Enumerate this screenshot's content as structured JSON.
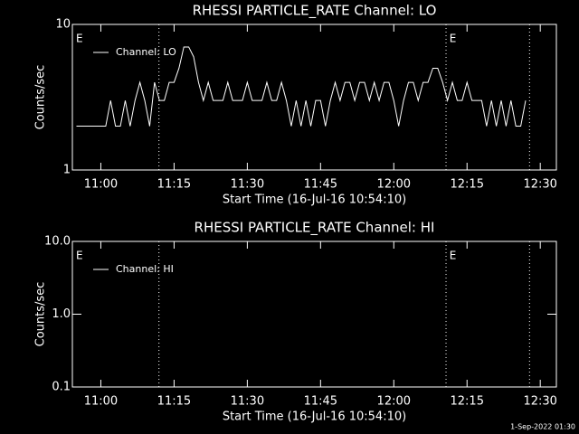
{
  "chart_data": [
    {
      "type": "line",
      "title": "RHESSI PARTICLE_RATE Channel: LO",
      "xlabel": "Start Time (16-Jul-16 10:54:10)",
      "ylabel": "Counts/sec",
      "ylog": true,
      "ylim": [
        1,
        10
      ],
      "yticks": [
        1,
        10
      ],
      "xlim": [
        654.17,
        753.3
      ],
      "xticks": [
        {
          "value": 660,
          "label": "11:00"
        },
        {
          "value": 675,
          "label": "11:15"
        },
        {
          "value": 690,
          "label": "11:30"
        },
        {
          "value": 705,
          "label": "11:45"
        },
        {
          "value": 720,
          "label": "12:00"
        },
        {
          "value": 735,
          "label": "12:15"
        },
        {
          "value": 750,
          "label": "12:30"
        }
      ],
      "vlines": [
        671.9,
        730.7,
        747.8
      ],
      "annotations": [
        {
          "text": "E",
          "x": 654.9
        },
        {
          "text": "E",
          "x": 731.4
        }
      ],
      "legend": "upper left",
      "series": [
        {
          "name": "Channel: LO",
          "color": "#ffffff",
          "x": [
            655,
            656,
            657,
            658,
            659,
            660,
            661,
            662,
            663,
            664,
            665,
            666,
            667,
            668,
            669,
            670,
            671,
            672,
            673,
            674,
            675,
            676,
            677,
            678,
            679,
            680,
            681,
            682,
            683,
            684,
            685,
            686,
            687,
            688,
            689,
            690,
            691,
            692,
            693,
            694,
            695,
            696,
            697,
            698,
            699,
            700,
            701,
            702,
            703,
            704,
            705,
            706,
            707,
            708,
            709,
            710,
            711,
            712,
            713,
            714,
            715,
            716,
            717,
            718,
            719,
            720,
            721,
            722,
            723,
            724,
            725,
            726,
            727,
            728,
            729,
            730,
            731,
            732,
            733,
            734,
            735,
            736,
            737,
            738,
            739,
            740,
            741,
            742,
            743,
            744,
            745,
            746,
            747
          ],
          "values": [
            2,
            2,
            2,
            2,
            2,
            2,
            2,
            3,
            2,
            2,
            3,
            2,
            3,
            4,
            3,
            2,
            4,
            3,
            3,
            4,
            4,
            5,
            7,
            7,
            6,
            4,
            3,
            4,
            3,
            3,
            3,
            4,
            3,
            3,
            3,
            4,
            3,
            3,
            3,
            4,
            3,
            3,
            4,
            3,
            2,
            3,
            2,
            3,
            2,
            3,
            3,
            2,
            3,
            4,
            3,
            4,
            4,
            3,
            4,
            4,
            3,
            4,
            3,
            4,
            4,
            3,
            2,
            3,
            4,
            4,
            3,
            4,
            4,
            5,
            5,
            4,
            3,
            4,
            3,
            3,
            4,
            3,
            3,
            3,
            2,
            3,
            2,
            3,
            2,
            3,
            2,
            2,
            3
          ]
        }
      ]
    },
    {
      "type": "line",
      "title": "RHESSI PARTICLE_RATE Channel: HI",
      "xlabel": "Start Time (16-Jul-16 10:54:10)",
      "ylabel": "Counts/sec",
      "ylog": true,
      "ylim": [
        0.1,
        10
      ],
      "yticks": [
        {
          "value": 0.1,
          "label": "0.1"
        },
        {
          "value": 1,
          "label": "1.0"
        },
        {
          "value": 10,
          "label": "10.0"
        }
      ],
      "xlim": [
        654.17,
        753.3
      ],
      "xticks": [
        {
          "value": 660,
          "label": "11:00"
        },
        {
          "value": 675,
          "label": "11:15"
        },
        {
          "value": 690,
          "label": "11:30"
        },
        {
          "value": 705,
          "label": "11:45"
        },
        {
          "value": 720,
          "label": "12:00"
        },
        {
          "value": 735,
          "label": "12:15"
        },
        {
          "value": 750,
          "label": "12:30"
        }
      ],
      "vlines": [
        671.9,
        730.7,
        747.8
      ],
      "annotations": [
        {
          "text": "E",
          "x": 654.9
        },
        {
          "text": "E",
          "x": 731.4
        }
      ],
      "legend": "upper left",
      "series": [
        {
          "name": "Channel: HI",
          "color": "#ffffff",
          "x": [],
          "values": []
        }
      ]
    }
  ],
  "footer": "1-Sep-2022 01:30"
}
